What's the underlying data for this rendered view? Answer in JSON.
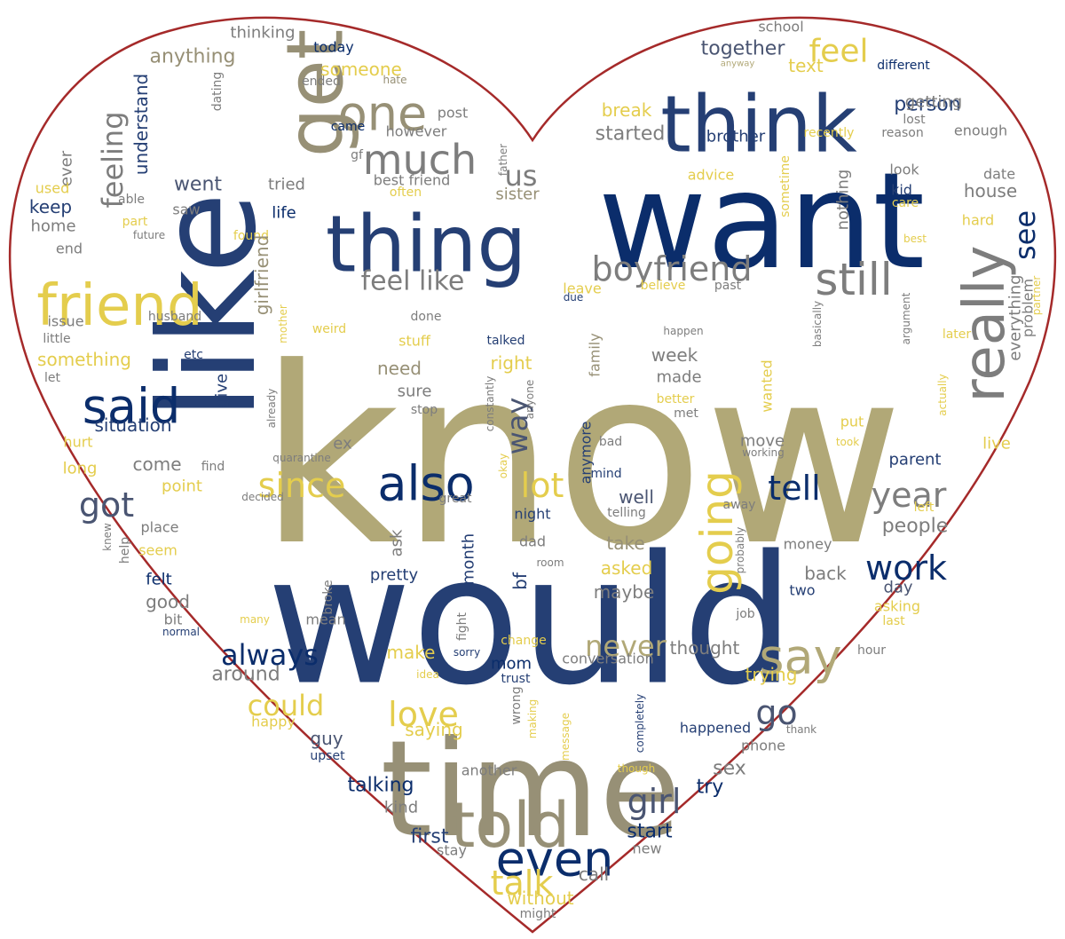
{
  "palette": [
    "#0b2d6b",
    "#253f74",
    "#b1a877",
    "#979076",
    "#7d7d7d",
    "#e4cd4d",
    "#4a5572"
  ],
  "outline_color": "#a52a2a",
  "words": [
    {
      "text": "know",
      "c": 2
    },
    {
      "text": "would",
      "c": 1
    },
    {
      "text": "want",
      "c": 0
    },
    {
      "text": "like",
      "c": 1
    },
    {
      "text": "time",
      "c": 3
    },
    {
      "text": "think",
      "c": 1
    },
    {
      "text": "thing",
      "c": 1
    },
    {
      "text": "get",
      "c": 3
    },
    {
      "text": "friend",
      "c": 5
    },
    {
      "text": "really",
      "c": 4
    },
    {
      "text": "told",
      "c": 3
    },
    {
      "text": "said",
      "c": 0
    },
    {
      "text": "also",
      "c": 0
    },
    {
      "text": "even",
      "c": 0
    },
    {
      "text": "say",
      "c": 2
    },
    {
      "text": "one",
      "c": 3
    },
    {
      "text": "much",
      "c": 4
    },
    {
      "text": "going",
      "c": 5
    },
    {
      "text": "still",
      "c": 4
    },
    {
      "text": "boyfriend",
      "c": 4
    },
    {
      "text": "feel like",
      "c": 4
    },
    {
      "text": "feeling",
      "c": 4
    },
    {
      "text": "feel",
      "c": 5
    },
    {
      "text": "always",
      "c": 0
    },
    {
      "text": "could",
      "c": 5
    },
    {
      "text": "never",
      "c": 2
    },
    {
      "text": "love",
      "c": 5
    },
    {
      "text": "talk",
      "c": 5
    },
    {
      "text": "girl",
      "c": 6
    },
    {
      "text": "work",
      "c": 0
    },
    {
      "text": "year",
      "c": 4
    },
    {
      "text": "tell",
      "c": 0
    },
    {
      "text": "since",
      "c": 5
    },
    {
      "text": "lot",
      "c": 5
    },
    {
      "text": "way",
      "c": 6
    },
    {
      "text": "got",
      "c": 6
    },
    {
      "text": "go",
      "c": 6
    },
    {
      "text": "see",
      "c": 0
    },
    {
      "text": "us",
      "c": 4
    },
    {
      "text": "together",
      "c": 6
    },
    {
      "text": "someone",
      "c": 5
    },
    {
      "text": "anything",
      "c": 3
    },
    {
      "text": "thinking",
      "c": 4
    },
    {
      "text": "today",
      "c": 0
    },
    {
      "text": "school",
      "c": 4
    },
    {
      "text": "understand",
      "c": 1
    },
    {
      "text": "dating",
      "c": 4
    },
    {
      "text": "ended",
      "c": 4
    },
    {
      "text": "hate",
      "c": 3
    },
    {
      "text": "anyway",
      "c": 2
    },
    {
      "text": "text",
      "c": 5
    },
    {
      "text": "different",
      "c": 0
    },
    {
      "text": "person",
      "c": 1
    },
    {
      "text": "getting",
      "c": 4
    },
    {
      "text": "post",
      "c": 4
    },
    {
      "text": "break",
      "c": 5
    },
    {
      "text": "started",
      "c": 4
    },
    {
      "text": "came",
      "c": 0
    },
    {
      "text": "however",
      "c": 4
    },
    {
      "text": "father",
      "c": 4
    },
    {
      "text": "brother",
      "c": 1
    },
    {
      "text": "recently",
      "c": 5
    },
    {
      "text": "reason",
      "c": 4
    },
    {
      "text": "lost",
      "c": 4
    },
    {
      "text": "enough",
      "c": 4
    },
    {
      "text": "ever",
      "c": 4
    },
    {
      "text": "used",
      "c": 5
    },
    {
      "text": "keep",
      "c": 1
    },
    {
      "text": "able",
      "c": 4
    },
    {
      "text": "saw",
      "c": 4
    },
    {
      "text": "went",
      "c": 6
    },
    {
      "text": "gf",
      "c": 4
    },
    {
      "text": "best friend",
      "c": 4
    },
    {
      "text": "often",
      "c": 5
    },
    {
      "text": "tried",
      "c": 4
    },
    {
      "text": "sister",
      "c": 3
    },
    {
      "text": "advice",
      "c": 5
    },
    {
      "text": "sometime",
      "c": 5
    },
    {
      "text": "look",
      "c": 4
    },
    {
      "text": "kid",
      "c": 1
    },
    {
      "text": "date",
      "c": 4
    },
    {
      "text": "house",
      "c": 4
    },
    {
      "text": "care",
      "c": 5
    },
    {
      "text": "nothing",
      "c": 4
    },
    {
      "text": "home",
      "c": 4
    },
    {
      "text": "life",
      "c": 0
    },
    {
      "text": "part",
      "c": 5
    },
    {
      "text": "future",
      "c": 4
    },
    {
      "text": "end",
      "c": 4
    },
    {
      "text": "found",
      "c": 5
    },
    {
      "text": "hard",
      "c": 5
    },
    {
      "text": "best",
      "c": 5
    },
    {
      "text": "leave",
      "c": 5
    },
    {
      "text": "believe",
      "c": 5
    },
    {
      "text": "past",
      "c": 4
    },
    {
      "text": "problem",
      "c": 4
    },
    {
      "text": "partner",
      "c": 5
    },
    {
      "text": "issue",
      "c": 4
    },
    {
      "text": "husband",
      "c": 4
    },
    {
      "text": "girlfriend",
      "c": 3
    },
    {
      "text": "weird",
      "c": 5
    },
    {
      "text": "done",
      "c": 4
    },
    {
      "text": "due",
      "c": 1
    },
    {
      "text": "happen",
      "c": 4
    },
    {
      "text": "basically",
      "c": 4
    },
    {
      "text": "argument",
      "c": 4
    },
    {
      "text": "later",
      "c": 5
    },
    {
      "text": "little",
      "c": 4
    },
    {
      "text": "mother",
      "c": 5
    },
    {
      "text": "stuff",
      "c": 5
    },
    {
      "text": "talked",
      "c": 1
    },
    {
      "text": "everything",
      "c": 4
    },
    {
      "text": "something",
      "c": 5
    },
    {
      "text": "etc",
      "c": 1
    },
    {
      "text": "right",
      "c": 5
    },
    {
      "text": "week",
      "c": 4
    },
    {
      "text": "made",
      "c": 4
    },
    {
      "text": "let",
      "c": 4
    },
    {
      "text": "need",
      "c": 3
    },
    {
      "text": "sure",
      "c": 4
    },
    {
      "text": "family",
      "c": 3
    },
    {
      "text": "wanted",
      "c": 5
    },
    {
      "text": "constantly",
      "c": 4
    },
    {
      "text": "better",
      "c": 5
    },
    {
      "text": "met",
      "c": 4
    },
    {
      "text": "actually",
      "c": 5
    },
    {
      "text": "give",
      "c": 1
    },
    {
      "text": "situation",
      "c": 1
    },
    {
      "text": "stop",
      "c": 4
    },
    {
      "text": "anyone",
      "c": 4
    },
    {
      "text": "put",
      "c": 5
    },
    {
      "text": "already",
      "c": 4
    },
    {
      "text": "hurt",
      "c": 5
    },
    {
      "text": "ex",
      "c": 4
    },
    {
      "text": "quarantine",
      "c": 4
    },
    {
      "text": "bad",
      "c": 4
    },
    {
      "text": "move",
      "c": 4
    },
    {
      "text": "took",
      "c": 5
    },
    {
      "text": "live",
      "c": 5
    },
    {
      "text": "working",
      "c": 4
    },
    {
      "text": "long",
      "c": 5
    },
    {
      "text": "come",
      "c": 4
    },
    {
      "text": "find",
      "c": 4
    },
    {
      "text": "anymore",
      "c": 1
    },
    {
      "text": "okay",
      "c": 5
    },
    {
      "text": "parent",
      "c": 1
    },
    {
      "text": "point",
      "c": 5
    },
    {
      "text": "mind",
      "c": 1
    },
    {
      "text": "decided",
      "c": 4
    },
    {
      "text": "great",
      "c": 4
    },
    {
      "text": "well",
      "c": 6
    },
    {
      "text": "away",
      "c": 4
    },
    {
      "text": "left",
      "c": 5
    },
    {
      "text": "night",
      "c": 1
    },
    {
      "text": "telling",
      "c": 4
    },
    {
      "text": "people",
      "c": 4
    },
    {
      "text": "knew",
      "c": 4
    },
    {
      "text": "place",
      "c": 4
    },
    {
      "text": "help",
      "c": 4
    },
    {
      "text": "seem",
      "c": 5
    },
    {
      "text": "ask",
      "c": 4
    },
    {
      "text": "month",
      "c": 1
    },
    {
      "text": "dad",
      "c": 4
    },
    {
      "text": "take",
      "c": 3
    },
    {
      "text": "room",
      "c": 4
    },
    {
      "text": "money",
      "c": 4
    },
    {
      "text": "probably",
      "c": 4
    },
    {
      "text": "felt",
      "c": 0
    },
    {
      "text": "bf",
      "c": 1
    },
    {
      "text": "asked",
      "c": 5
    },
    {
      "text": "back",
      "c": 4
    },
    {
      "text": "day",
      "c": 6
    },
    {
      "text": "pretty",
      "c": 1
    },
    {
      "text": "maybe",
      "c": 4
    },
    {
      "text": "two",
      "c": 1
    },
    {
      "text": "good",
      "c": 4
    },
    {
      "text": "broke",
      "c": 4
    },
    {
      "text": "asking",
      "c": 5
    },
    {
      "text": "bit",
      "c": 4
    },
    {
      "text": "many",
      "c": 5
    },
    {
      "text": "mean",
      "c": 4
    },
    {
      "text": "fight",
      "c": 4
    },
    {
      "text": "job",
      "c": 4
    },
    {
      "text": "last",
      "c": 5
    },
    {
      "text": "normal",
      "c": 1
    },
    {
      "text": "change",
      "c": 5
    },
    {
      "text": "thought",
      "c": 4
    },
    {
      "text": "hour",
      "c": 4
    },
    {
      "text": "make",
      "c": 5
    },
    {
      "text": "sorry",
      "c": 1
    },
    {
      "text": "mom",
      "c": 0
    },
    {
      "text": "conversation",
      "c": 4
    },
    {
      "text": "around",
      "c": 4
    },
    {
      "text": "idea",
      "c": 5
    },
    {
      "text": "trying",
      "c": 5
    },
    {
      "text": "trust",
      "c": 1
    },
    {
      "text": "wrong",
      "c": 4
    },
    {
      "text": "making",
      "c": 5
    },
    {
      "text": "happy",
      "c": 5
    },
    {
      "text": "saying",
      "c": 5
    },
    {
      "text": "message",
      "c": 5
    },
    {
      "text": "completely",
      "c": 1
    },
    {
      "text": "happened",
      "c": 1
    },
    {
      "text": "thank",
      "c": 4
    },
    {
      "text": "guy",
      "c": 6
    },
    {
      "text": "phone",
      "c": 4
    },
    {
      "text": "upset",
      "c": 1
    },
    {
      "text": "another",
      "c": 4
    },
    {
      "text": "though",
      "c": 5
    },
    {
      "text": "sex",
      "c": 4
    },
    {
      "text": "talking",
      "c": 0
    },
    {
      "text": "try",
      "c": 0
    },
    {
      "text": "kind",
      "c": 4
    },
    {
      "text": "first",
      "c": 1
    },
    {
      "text": "start",
      "c": 0
    },
    {
      "text": "stay",
      "c": 4
    },
    {
      "text": "new",
      "c": 4
    },
    {
      "text": "call",
      "c": 4
    },
    {
      "text": "without",
      "c": 5
    },
    {
      "text": "might",
      "c": 4
    }
  ]
}
